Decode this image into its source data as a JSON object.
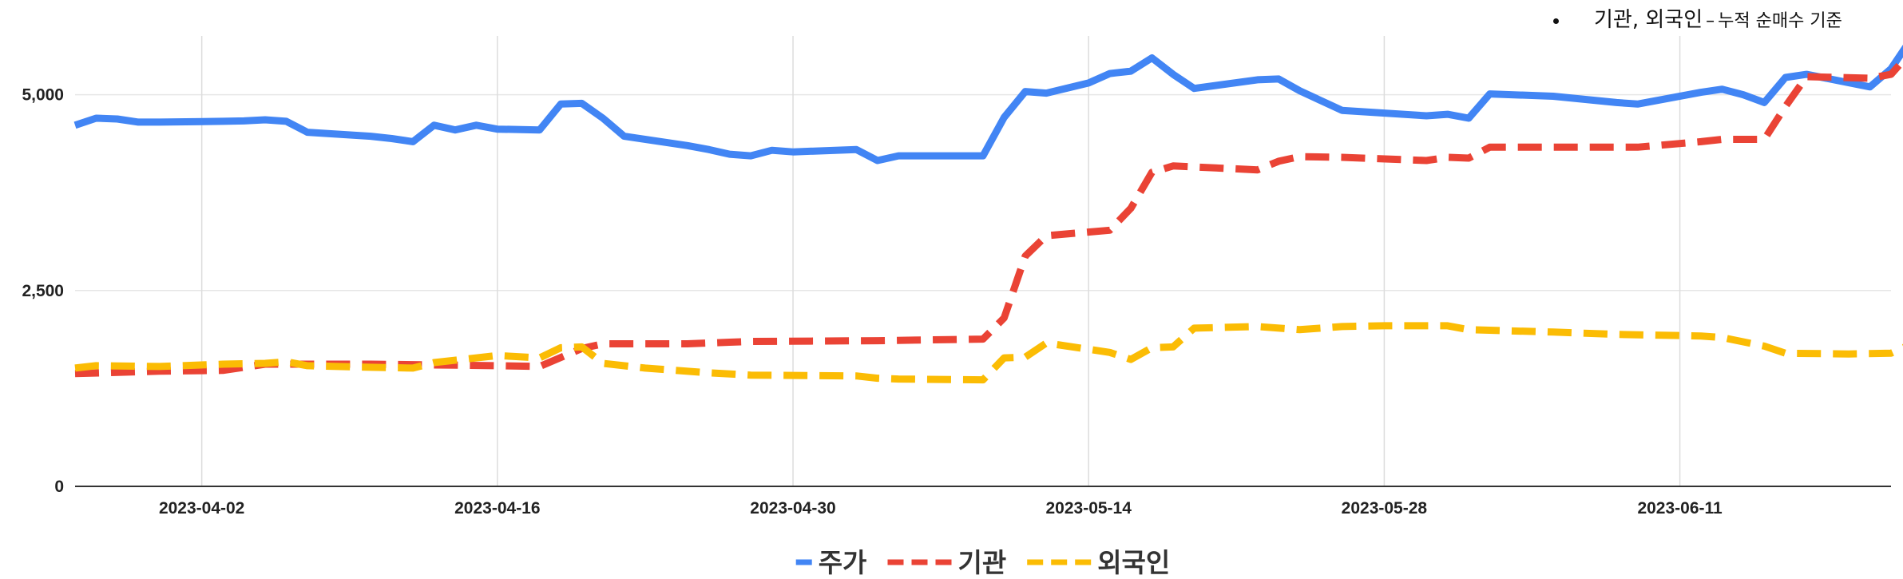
{
  "annotation": {
    "main": "기관, 외국인",
    "dash": "–",
    "detail": "누적 순매수 기준"
  },
  "chart_data": {
    "type": "line",
    "title": "",
    "xlabel": "",
    "ylabel": "",
    "ylim": [
      0,
      5750
    ],
    "xlim": [
      "2023-03-27",
      "2023-06-21"
    ],
    "y_ticks": [
      "0",
      "2,500",
      "5,000"
    ],
    "y_tick_values": [
      0,
      2500,
      5000
    ],
    "x_ticks": [
      "2023-04-02",
      "2023-04-16",
      "2023-04-30",
      "2023-05-14",
      "2023-05-28",
      "2023-06-11"
    ],
    "grid": true,
    "legend_position": "bottom",
    "series": [
      {
        "name": "주가",
        "color": "#4285f4",
        "style": "solid",
        "points": [
          [
            "2023-03-27",
            4610
          ],
          [
            "2023-03-28",
            4700
          ],
          [
            "2023-03-29",
            4690
          ],
          [
            "2023-03-30",
            4650
          ],
          [
            "2023-03-31",
            4650
          ],
          [
            "2023-04-03",
            4660
          ],
          [
            "2023-04-04",
            4665
          ],
          [
            "2023-04-05",
            4680
          ],
          [
            "2023-04-06",
            4660
          ],
          [
            "2023-04-07",
            4520
          ],
          [
            "2023-04-10",
            4470
          ],
          [
            "2023-04-11",
            4440
          ],
          [
            "2023-04-12",
            4400
          ],
          [
            "2023-04-13",
            4610
          ],
          [
            "2023-04-14",
            4550
          ],
          [
            "2023-04-15",
            4610
          ],
          [
            "2023-04-16",
            4560
          ],
          [
            "2023-04-18",
            4550
          ],
          [
            "2023-04-19",
            4880
          ],
          [
            "2023-04-20",
            4890
          ],
          [
            "2023-04-21",
            4700
          ],
          [
            "2023-04-22",
            4470
          ],
          [
            "2023-04-25",
            4350
          ],
          [
            "2023-04-26",
            4300
          ],
          [
            "2023-04-27",
            4240
          ],
          [
            "2023-04-28",
            4220
          ],
          [
            "2023-04-29",
            4290
          ],
          [
            "2023-04-30",
            4270
          ],
          [
            "2023-05-03",
            4300
          ],
          [
            "2023-05-04",
            4160
          ],
          [
            "2023-05-05",
            4220
          ],
          [
            "2023-05-09",
            4220
          ],
          [
            "2023-05-10",
            4710
          ],
          [
            "2023-05-11",
            5040
          ],
          [
            "2023-05-12",
            5020
          ],
          [
            "2023-05-14",
            5150
          ],
          [
            "2023-05-15",
            5270
          ],
          [
            "2023-05-16",
            5300
          ],
          [
            "2023-05-17",
            5470
          ],
          [
            "2023-05-18",
            5260
          ],
          [
            "2023-05-19",
            5080
          ],
          [
            "2023-05-22",
            5190
          ],
          [
            "2023-05-23",
            5200
          ],
          [
            "2023-05-24",
            5050
          ],
          [
            "2023-05-26",
            4800
          ],
          [
            "2023-05-30",
            4730
          ],
          [
            "2023-05-31",
            4750
          ],
          [
            "2023-06-01",
            4700
          ],
          [
            "2023-06-02",
            5010
          ],
          [
            "2023-06-05",
            4980
          ],
          [
            "2023-06-08",
            4900
          ],
          [
            "2023-06-09",
            4880
          ],
          [
            "2023-06-12",
            5030
          ],
          [
            "2023-06-13",
            5070
          ],
          [
            "2023-06-14",
            5000
          ],
          [
            "2023-06-15",
            4900
          ],
          [
            "2023-06-16",
            5220
          ],
          [
            "2023-06-17",
            5260
          ],
          [
            "2023-06-20",
            5100
          ],
          [
            "2023-06-21",
            5330
          ],
          [
            "2023-06-22",
            5730
          ]
        ]
      },
      {
        "name": "기관",
        "color": "#ea4335",
        "style": "dashed",
        "points": [
          [
            "2023-03-27",
            1440
          ],
          [
            "2023-03-31",
            1470
          ],
          [
            "2023-04-03",
            1480
          ],
          [
            "2023-04-05",
            1560
          ],
          [
            "2023-04-10",
            1560
          ],
          [
            "2023-04-16",
            1540
          ],
          [
            "2023-04-18",
            1530
          ],
          [
            "2023-04-20",
            1760
          ],
          [
            "2023-04-21",
            1820
          ],
          [
            "2023-04-25",
            1820
          ],
          [
            "2023-04-27",
            1840
          ],
          [
            "2023-04-28",
            1850
          ],
          [
            "2023-05-04",
            1860
          ],
          [
            "2023-05-09",
            1880
          ],
          [
            "2023-05-10",
            2150
          ],
          [
            "2023-05-11",
            2940
          ],
          [
            "2023-05-12",
            3200
          ],
          [
            "2023-05-15",
            3270
          ],
          [
            "2023-05-16",
            3550
          ],
          [
            "2023-05-17",
            4010
          ],
          [
            "2023-05-18",
            4090
          ],
          [
            "2023-05-22",
            4040
          ],
          [
            "2023-05-23",
            4150
          ],
          [
            "2023-05-24",
            4210
          ],
          [
            "2023-05-26",
            4200
          ],
          [
            "2023-05-30",
            4160
          ],
          [
            "2023-05-31",
            4200
          ],
          [
            "2023-06-01",
            4190
          ],
          [
            "2023-06-02",
            4330
          ],
          [
            "2023-06-09",
            4330
          ],
          [
            "2023-06-12",
            4400
          ],
          [
            "2023-06-13",
            4430
          ],
          [
            "2023-06-15",
            4430
          ],
          [
            "2023-06-16",
            4850
          ],
          [
            "2023-06-17",
            5230
          ],
          [
            "2023-06-20",
            5210
          ],
          [
            "2023-06-21",
            5260
          ],
          [
            "2023-06-22",
            5560
          ]
        ]
      },
      {
        "name": "외국인",
        "color": "#fbbc04",
        "style": "dashed",
        "points": [
          [
            "2023-03-27",
            1510
          ],
          [
            "2023-03-28",
            1540
          ],
          [
            "2023-03-31",
            1530
          ],
          [
            "2023-04-03",
            1560
          ],
          [
            "2023-04-05",
            1570
          ],
          [
            "2023-04-06",
            1590
          ],
          [
            "2023-04-07",
            1540
          ],
          [
            "2023-04-10",
            1520
          ],
          [
            "2023-04-12",
            1510
          ],
          [
            "2023-04-13",
            1580
          ],
          [
            "2023-04-16",
            1670
          ],
          [
            "2023-04-18",
            1640
          ],
          [
            "2023-04-19",
            1770
          ],
          [
            "2023-04-20",
            1780
          ],
          [
            "2023-04-21",
            1570
          ],
          [
            "2023-04-23",
            1510
          ],
          [
            "2023-04-26",
            1450
          ],
          [
            "2023-04-28",
            1420
          ],
          [
            "2023-05-03",
            1410
          ],
          [
            "2023-05-04",
            1380
          ],
          [
            "2023-05-05",
            1370
          ],
          [
            "2023-05-09",
            1360
          ],
          [
            "2023-05-10",
            1640
          ],
          [
            "2023-05-11",
            1650
          ],
          [
            "2023-05-12",
            1830
          ],
          [
            "2023-05-15",
            1710
          ],
          [
            "2023-05-16",
            1620
          ],
          [
            "2023-05-17",
            1770
          ],
          [
            "2023-05-18",
            1780
          ],
          [
            "2023-05-19",
            2020
          ],
          [
            "2023-05-22",
            2040
          ],
          [
            "2023-05-24",
            2000
          ],
          [
            "2023-05-26",
            2040
          ],
          [
            "2023-05-28",
            2050
          ],
          [
            "2023-05-31",
            2050
          ],
          [
            "2023-06-01",
            2000
          ],
          [
            "2023-06-05",
            1970
          ],
          [
            "2023-06-08",
            1940
          ],
          [
            "2023-06-12",
            1920
          ],
          [
            "2023-06-13",
            1900
          ],
          [
            "2023-06-15",
            1790
          ],
          [
            "2023-06-16",
            1700
          ],
          [
            "2023-06-19",
            1690
          ],
          [
            "2023-06-21",
            1700
          ],
          [
            "2023-06-22",
            1820
          ]
        ]
      }
    ]
  }
}
